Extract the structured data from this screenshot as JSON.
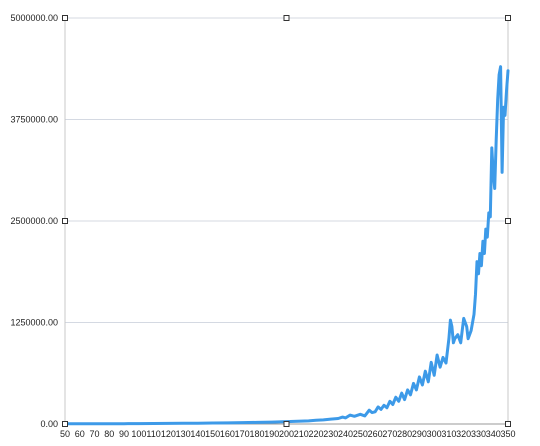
{
  "chart_data": {
    "type": "line",
    "title": "",
    "xlabel": "",
    "ylabel": "",
    "xlim": [
      50,
      350
    ],
    "ylim": [
      0,
      5000000
    ],
    "grid": true,
    "legend": "none",
    "x_ticks": [
      50,
      60,
      70,
      80,
      90,
      100,
      110,
      120,
      130,
      140,
      150,
      160,
      170,
      180,
      190,
      200,
      210,
      220,
      230,
      240,
      250,
      260,
      270,
      280,
      290,
      300,
      310,
      320,
      330,
      340,
      350
    ],
    "y_ticks": [
      0,
      1250000,
      2500000,
      3750000,
      5000000
    ],
    "y_tick_labels": [
      "0.00",
      "1250000.00",
      "2500000.00",
      "3750000.00",
      "5000000.00"
    ],
    "series": [
      {
        "color": "#3d9ae8",
        "points": [
          [
            50,
            2000
          ],
          [
            60,
            2500
          ],
          [
            70,
            3000
          ],
          [
            80,
            3500
          ],
          [
            90,
            4200
          ],
          [
            100,
            5000
          ],
          [
            110,
            6000
          ],
          [
            120,
            7000
          ],
          [
            130,
            8500
          ],
          [
            140,
            10000
          ],
          [
            150,
            12000
          ],
          [
            160,
            14000
          ],
          [
            170,
            17000
          ],
          [
            180,
            20000
          ],
          [
            190,
            24000
          ],
          [
            200,
            30000
          ],
          [
            205,
            32000
          ],
          [
            210,
            36000
          ],
          [
            215,
            38000
          ],
          [
            220,
            45000
          ],
          [
            225,
            50000
          ],
          [
            230,
            60000
          ],
          [
            235,
            68000
          ],
          [
            238,
            85000
          ],
          [
            240,
            75000
          ],
          [
            243,
            110000
          ],
          [
            246,
            95000
          ],
          [
            250,
            120000
          ],
          [
            253,
            100000
          ],
          [
            256,
            170000
          ],
          [
            258,
            140000
          ],
          [
            260,
            150000
          ],
          [
            262,
            210000
          ],
          [
            264,
            180000
          ],
          [
            266,
            230000
          ],
          [
            268,
            200000
          ],
          [
            270,
            280000
          ],
          [
            272,
            240000
          ],
          [
            274,
            330000
          ],
          [
            276,
            280000
          ],
          [
            278,
            380000
          ],
          [
            280,
            300000
          ],
          [
            282,
            420000
          ],
          [
            284,
            360000
          ],
          [
            286,
            500000
          ],
          [
            288,
            420000
          ],
          [
            290,
            580000
          ],
          [
            292,
            480000
          ],
          [
            294,
            650000
          ],
          [
            296,
            520000
          ],
          [
            298,
            760000
          ],
          [
            300,
            600000
          ],
          [
            302,
            850000
          ],
          [
            304,
            700000
          ],
          [
            306,
            820000
          ],
          [
            308,
            750000
          ],
          [
            310,
            1050000
          ],
          [
            311,
            1280000
          ],
          [
            312,
            1200000
          ],
          [
            313,
            1000000
          ],
          [
            314,
            1050000
          ],
          [
            316,
            1100000
          ],
          [
            318,
            1000000
          ],
          [
            320,
            1300000
          ],
          [
            322,
            1200000
          ],
          [
            323,
            1050000
          ],
          [
            325,
            1150000
          ],
          [
            327,
            1350000
          ],
          [
            328,
            1600000
          ],
          [
            329,
            2000000
          ],
          [
            330,
            1850000
          ],
          [
            331,
            2100000
          ],
          [
            332,
            1950000
          ],
          [
            333,
            2250000
          ],
          [
            334,
            2100000
          ],
          [
            335,
            2400000
          ],
          [
            336,
            2300000
          ],
          [
            337,
            2600000
          ],
          [
            338,
            2550000
          ],
          [
            339,
            3400000
          ],
          [
            340,
            3100000
          ],
          [
            341,
            2900000
          ],
          [
            342,
            3500000
          ],
          [
            343,
            4000000
          ],
          [
            344,
            4300000
          ],
          [
            345,
            4400000
          ],
          [
            346,
            3100000
          ],
          [
            347,
            3900000
          ],
          [
            348,
            3800000
          ],
          [
            349,
            4100000
          ],
          [
            350,
            4350000
          ]
        ]
      }
    ]
  }
}
